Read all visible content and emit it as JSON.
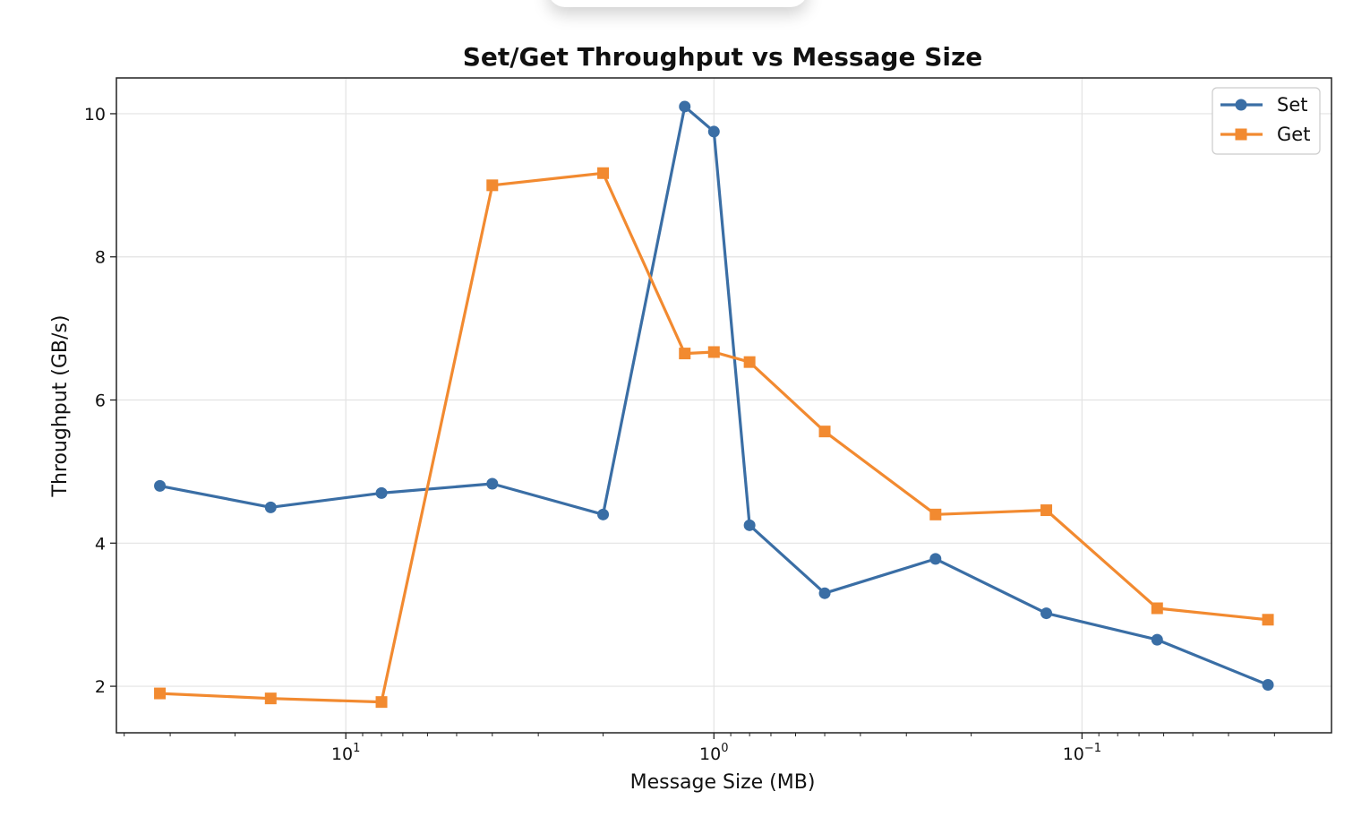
{
  "chart_data": {
    "type": "line",
    "title": "Set/Get Throughput vs Message Size",
    "xlabel": "Message Size (MB)",
    "ylabel": "Throughput (GB/s)",
    "x_scale": "log",
    "x_axis_reversed": true,
    "xlim": [
      42,
      0.021
    ],
    "ylim": [
      1.35,
      10.5
    ],
    "x_ticks": [
      {
        "value": 10,
        "base": "10",
        "exp": "1"
      },
      {
        "value": 1,
        "base": "10",
        "exp": "0"
      },
      {
        "value": 0.1,
        "base": "10",
        "exp": "−1"
      }
    ],
    "y_ticks": [
      {
        "value": 2,
        "label": "2"
      },
      {
        "value": 4,
        "label": "4"
      },
      {
        "value": 6,
        "label": "6"
      },
      {
        "value": 8,
        "label": "8"
      },
      {
        "value": 10,
        "label": "10"
      }
    ],
    "grid": true,
    "legend_position": "top-right",
    "x": [
      32,
      16,
      8,
      4,
      2,
      1.2,
      1,
      0.8,
      0.5,
      0.25,
      0.125,
      0.0625,
      0.03125
    ],
    "series": [
      {
        "name": "Set",
        "color": "#3a6ea5",
        "marker": "circle",
        "values": [
          4.8,
          4.5,
          4.7,
          4.83,
          4.4,
          10.1,
          9.75,
          4.25,
          3.3,
          3.78,
          3.02,
          2.65,
          2.02
        ]
      },
      {
        "name": "Get",
        "color": "#f28a30",
        "marker": "square",
        "values": [
          1.9,
          1.83,
          1.78,
          9.0,
          9.17,
          6.65,
          6.67,
          6.53,
          5.56,
          4.4,
          4.46,
          3.09,
          2.93
        ]
      }
    ]
  }
}
